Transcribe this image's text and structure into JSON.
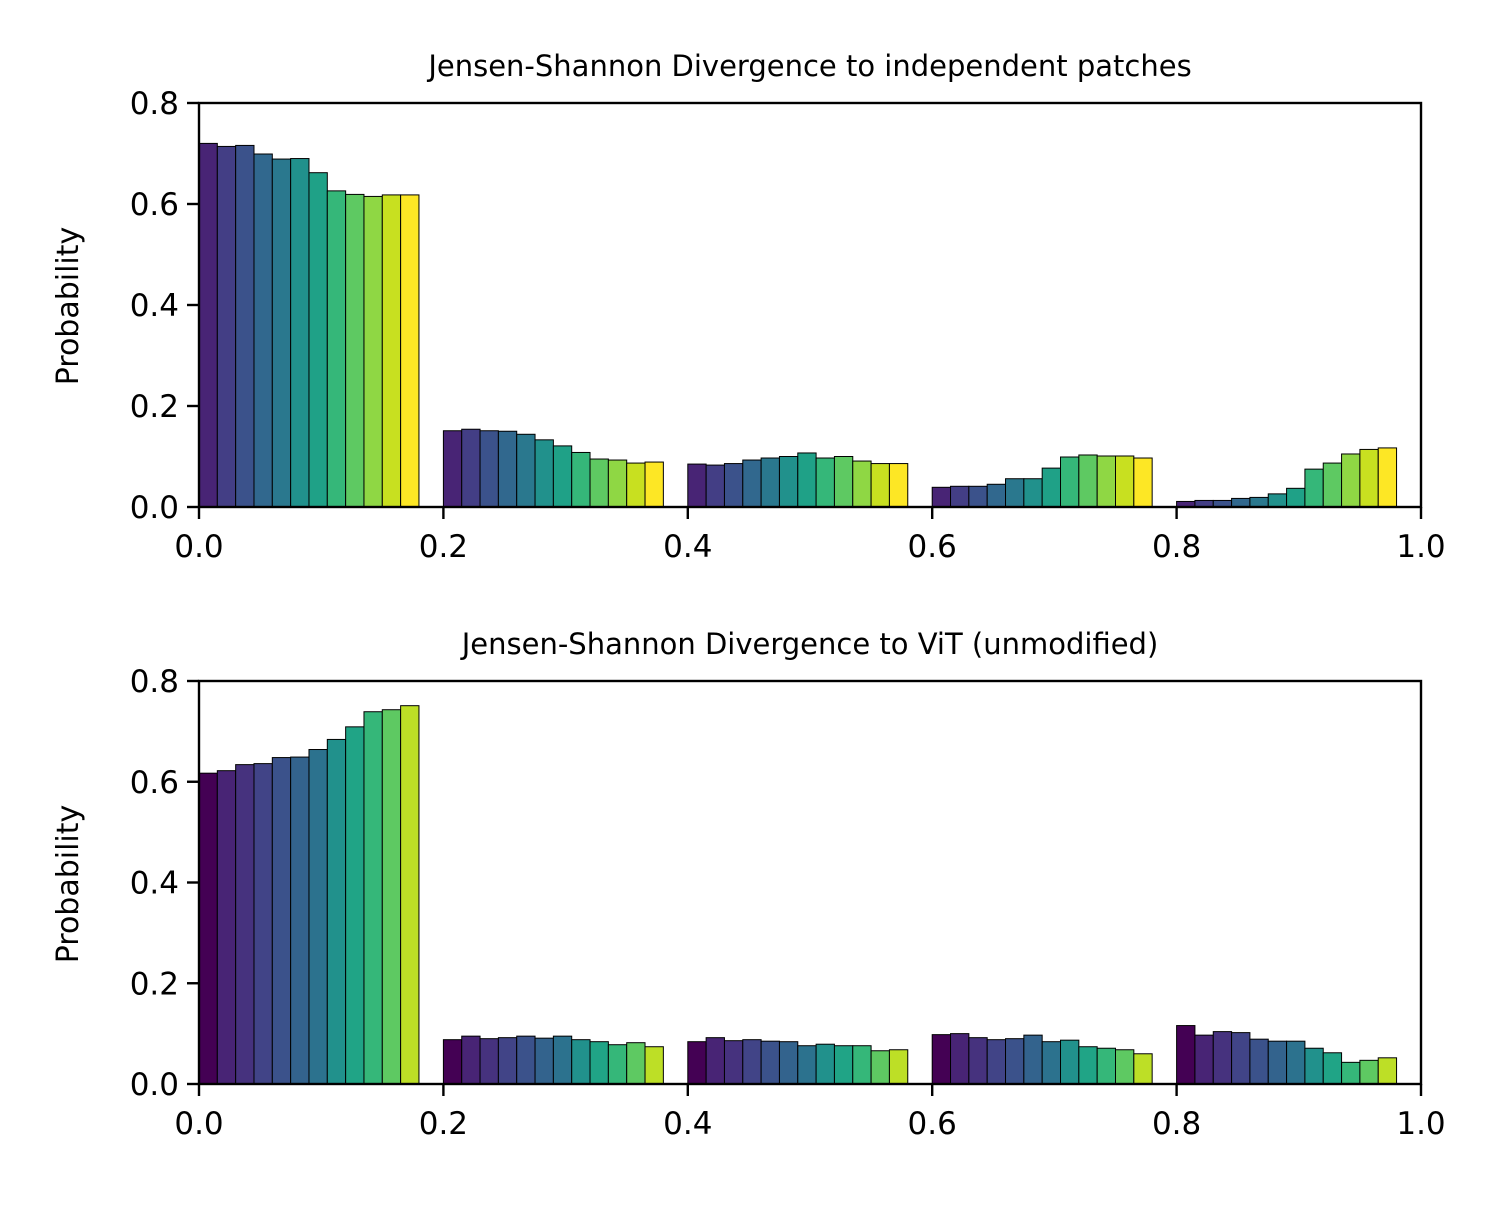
{
  "chart_data": [
    {
      "type": "bar",
      "title": "Jensen-Shannon Divergence to independent patches",
      "xlabel": "",
      "ylabel": "Probability",
      "xlim": [
        0.0,
        1.0
      ],
      "ylim": [
        0.0,
        0.8
      ],
      "grid": false,
      "x_ticks": [
        "0.0",
        "0.2",
        "0.4",
        "0.6",
        "0.8",
        "1.0"
      ],
      "y_ticks": [
        "0.0",
        "0.2",
        "0.4",
        "0.6",
        "0.8"
      ],
      "bin_edges": [
        0.0,
        0.2,
        0.4,
        0.6,
        0.8,
        1.0
      ],
      "colors": [
        "#440154",
        "#482475",
        "#414487",
        "#355f8d",
        "#2a788e",
        "#21918c",
        "#22a884",
        "#44bf70",
        "#7ad151",
        "#bddf26",
        "#fde725"
      ],
      "groups": [
        {
          "bin": "0.0-0.2",
          "start": 0.0,
          "colors": [
            "#482475",
            "#433e85",
            "#3b528b",
            "#31688e",
            "#2a788e",
            "#21918c",
            "#1fa187",
            "#35b779",
            "#5ec962",
            "#8fd744",
            "#c8e020",
            "#fde725"
          ],
          "values": [
            0.72,
            0.714,
            0.716,
            0.699,
            0.689,
            0.69,
            0.662,
            0.626,
            0.619,
            0.615,
            0.618,
            0.618
          ]
        },
        {
          "bin": "0.2-0.4",
          "start": 0.2,
          "colors": [
            "#482475",
            "#433e85",
            "#3b528b",
            "#31688e",
            "#2a788e",
            "#21918c",
            "#1fa187",
            "#35b779",
            "#5ec962",
            "#8fd744",
            "#c8e020",
            "#fde725"
          ],
          "values": [
            0.151,
            0.154,
            0.151,
            0.15,
            0.144,
            0.133,
            0.121,
            0.108,
            0.095,
            0.093,
            0.087,
            0.089
          ]
        },
        {
          "bin": "0.4-0.6",
          "start": 0.4,
          "colors": [
            "#482475",
            "#433e85",
            "#3b528b",
            "#31688e",
            "#2a788e",
            "#21918c",
            "#1fa187",
            "#35b779",
            "#5ec962",
            "#8fd744",
            "#c8e020",
            "#fde725"
          ],
          "values": [
            0.085,
            0.083,
            0.086,
            0.093,
            0.097,
            0.1,
            0.107,
            0.097,
            0.1,
            0.091,
            0.086,
            0.086
          ]
        },
        {
          "bin": "0.6-0.8",
          "start": 0.6,
          "colors": [
            "#482475",
            "#433e85",
            "#3b528b",
            "#31688e",
            "#2a788e",
            "#21918c",
            "#1fa187",
            "#35b779",
            "#5ec962",
            "#8fd744",
            "#c8e020",
            "#fde725"
          ],
          "values": [
            0.039,
            0.041,
            0.041,
            0.045,
            0.056,
            0.056,
            0.077,
            0.099,
            0.103,
            0.101,
            0.101,
            0.097
          ]
        },
        {
          "bin": "0.8-1.0",
          "start": 0.8,
          "colors": [
            "#482475",
            "#433e85",
            "#3b528b",
            "#31688e",
            "#2a788e",
            "#21918c",
            "#1fa187",
            "#35b779",
            "#5ec962",
            "#8fd744",
            "#c8e020",
            "#fde725"
          ],
          "values": [
            0.011,
            0.013,
            0.013,
            0.017,
            0.019,
            0.026,
            0.037,
            0.075,
            0.087,
            0.105,
            0.114,
            0.117
          ]
        }
      ]
    },
    {
      "type": "bar",
      "title": "Jensen-Shannon Divergence to ViT (unmodified)",
      "xlabel": "",
      "ylabel": "Probability",
      "xlim": [
        0.0,
        1.0
      ],
      "ylim": [
        0.0,
        0.8
      ],
      "grid": false,
      "x_ticks": [
        "0.0",
        "0.2",
        "0.4",
        "0.6",
        "0.8",
        "1.0"
      ],
      "y_ticks": [
        "0.0",
        "0.2",
        "0.4",
        "0.6",
        "0.8"
      ],
      "bin_edges": [
        0.0,
        0.2,
        0.4,
        0.6,
        0.8,
        1.0
      ],
      "groups": [
        {
          "bin": "0.0-0.2",
          "start": 0.0,
          "colors": [
            "#440154",
            "#482475",
            "#46327e",
            "#414487",
            "#3b528b",
            "#33638d",
            "#2c728e",
            "#21918c",
            "#20a486",
            "#35b779",
            "#5ec962",
            "#bddf26"
          ],
          "values": [
            0.617,
            0.622,
            0.634,
            0.636,
            0.648,
            0.649,
            0.664,
            0.684,
            0.709,
            0.739,
            0.743,
            0.751
          ]
        },
        {
          "bin": "0.2-0.4",
          "start": 0.2,
          "colors": [
            "#440154",
            "#482475",
            "#46327e",
            "#414487",
            "#3b528b",
            "#33638d",
            "#2c728e",
            "#21918c",
            "#20a486",
            "#35b779",
            "#5ec962",
            "#bddf26"
          ],
          "values": [
            0.088,
            0.095,
            0.09,
            0.092,
            0.095,
            0.091,
            0.095,
            0.088,
            0.084,
            0.078,
            0.082,
            0.074
          ]
        },
        {
          "bin": "0.4-0.6",
          "start": 0.4,
          "colors": [
            "#440154",
            "#482475",
            "#46327e",
            "#414487",
            "#3b528b",
            "#33638d",
            "#2c728e",
            "#21918c",
            "#20a486",
            "#35b779",
            "#5ec962",
            "#bddf26"
          ],
          "values": [
            0.084,
            0.092,
            0.086,
            0.088,
            0.085,
            0.084,
            0.076,
            0.079,
            0.076,
            0.076,
            0.066,
            0.068
          ]
        },
        {
          "bin": "0.6-0.8",
          "start": 0.6,
          "colors": [
            "#440154",
            "#482475",
            "#46327e",
            "#414487",
            "#3b528b",
            "#33638d",
            "#2c728e",
            "#21918c",
            "#20a486",
            "#35b779",
            "#5ec962",
            "#bddf26"
          ],
          "values": [
            0.098,
            0.1,
            0.092,
            0.088,
            0.09,
            0.097,
            0.084,
            0.087,
            0.074,
            0.071,
            0.068,
            0.06
          ]
        },
        {
          "bin": "0.8-1.0",
          "start": 0.8,
          "colors": [
            "#440154",
            "#482475",
            "#46327e",
            "#414487",
            "#3b528b",
            "#33638d",
            "#2c728e",
            "#21918c",
            "#20a486",
            "#35b779",
            "#5ec962",
            "#bddf26"
          ],
          "values": [
            0.116,
            0.097,
            0.104,
            0.102,
            0.089,
            0.085,
            0.085,
            0.071,
            0.062,
            0.043,
            0.047,
            0.052
          ]
        }
      ]
    }
  ]
}
